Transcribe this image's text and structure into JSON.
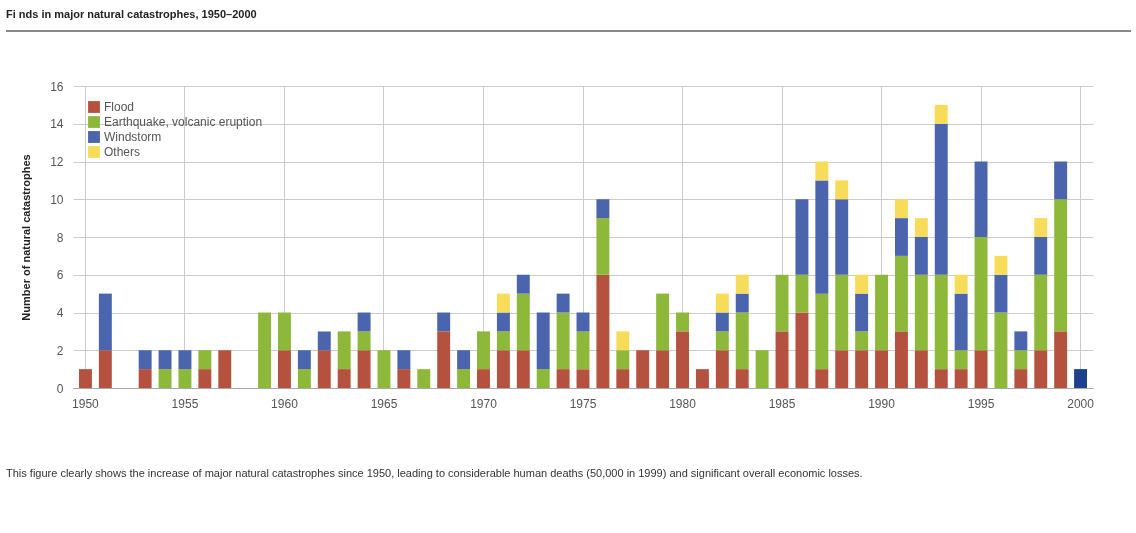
{
  "chart_data": {
    "type": "bar",
    "title": "Fi nds in major natural catastrophes, 1950–2000",
    "ylabel": "Number of natural catastrophes",
    "stacked": true,
    "categories": [
      "1950",
      null,
      null,
      null,
      null,
      "1955",
      null,
      null,
      null,
      null,
      "1960",
      null,
      null,
      null,
      null,
      "1965",
      null,
      null,
      null,
      null,
      "1970",
      null,
      null,
      null,
      null,
      "1975",
      null,
      null,
      null,
      null,
      "1980",
      null,
      null,
      null,
      null,
      "1985",
      null,
      null,
      null,
      null,
      "1990",
      null,
      null,
      null,
      null,
      "1995",
      null,
      null,
      null,
      null,
      "2000"
    ],
    "series": [
      {
        "name": "Flood",
        "color": "#b5523f",
        "values": [
          1,
          2,
          null,
          1,
          null,
          null,
          1,
          2,
          null,
          null,
          2,
          null,
          2,
          1,
          2,
          null,
          1,
          null,
          3,
          null,
          1,
          2,
          2,
          null,
          1,
          1,
          6,
          1,
          2,
          2,
          3,
          1,
          2,
          1,
          null,
          3,
          4,
          1,
          2,
          2,
          2,
          3,
          2,
          1,
          1,
          2,
          null,
          1,
          2,
          3,
          null
        ]
      },
      {
        "name": "Earthquake, volcanic eruption",
        "color": "#8db83a",
        "values": [
          null,
          null,
          null,
          null,
          1,
          1,
          1,
          null,
          null,
          4,
          2,
          1,
          null,
          2,
          1,
          2,
          null,
          1,
          null,
          1,
          2,
          1,
          3,
          1,
          3,
          2,
          3,
          1,
          null,
          3,
          1,
          null,
          1,
          3,
          2,
          3,
          2,
          4,
          4,
          1,
          4,
          4,
          4,
          5,
          1,
          6,
          4,
          1,
          4,
          7,
          null
        ]
      },
      {
        "name": "Windstorm",
        "color": "#4a64ad",
        "values": [
          null,
          3,
          null,
          1,
          1,
          1,
          null,
          null,
          null,
          null,
          null,
          1,
          1,
          null,
          1,
          null,
          1,
          null,
          1,
          1,
          null,
          1,
          1,
          3,
          1,
          1,
          1,
          null,
          null,
          null,
          null,
          null,
          1,
          1,
          null,
          null,
          4,
          6,
          4,
          2,
          null,
          2,
          2,
          8,
          3,
          4,
          2,
          1,
          2,
          2,
          null
        ]
      },
      {
        "name": "Others",
        "color": "#f7dc5a",
        "values": [
          null,
          null,
          null,
          null,
          null,
          null,
          null,
          null,
          null,
          null,
          null,
          null,
          null,
          null,
          null,
          null,
          null,
          null,
          null,
          null,
          null,
          1,
          null,
          null,
          null,
          null,
          null,
          1,
          null,
          null,
          null,
          null,
          1,
          1,
          null,
          null,
          null,
          1,
          1,
          1,
          null,
          1,
          1,
          1,
          1,
          null,
          1,
          null,
          1,
          null,
          null
        ]
      },
      {
        "color": "#1f3f8f",
        "values": [
          null,
          null,
          null,
          null,
          null,
          null,
          null,
          null,
          null,
          null,
          null,
          null,
          null,
          null,
          null,
          null,
          null,
          null,
          null,
          null,
          null,
          null,
          null,
          null,
          null,
          null,
          null,
          null,
          null,
          null,
          null,
          null,
          null,
          null,
          null,
          null,
          null,
          null,
          null,
          null,
          null,
          null,
          null,
          null,
          null,
          null,
          null,
          null,
          null,
          null,
          1
        ]
      }
    ],
    "ylim": [
      0,
      16
    ],
    "yticks": [
      0,
      2,
      4,
      6,
      8,
      10,
      12,
      14,
      16
    ],
    "grid": true,
    "legend": "top left",
    "annotations": [
      "This figure clearly shows the increase of major natural catastrophes since 1950, leading to considerable human deaths (50,000 in 1999) and significant overall economic losses."
    ]
  }
}
